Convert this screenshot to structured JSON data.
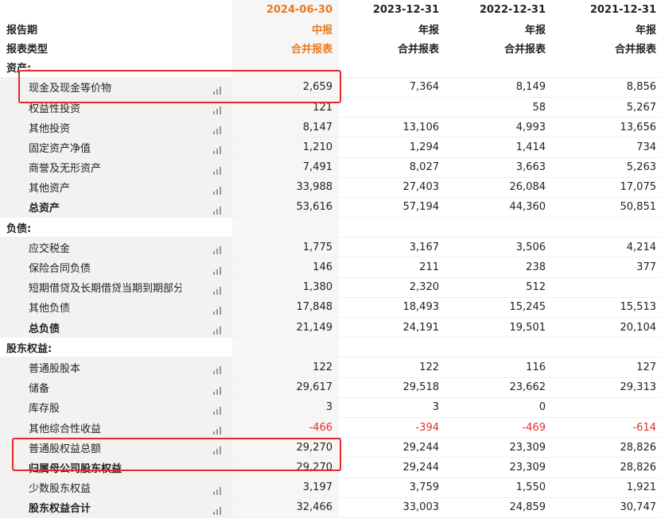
{
  "header": {
    "dates": [
      "2024-06-30",
      "2023-12-31",
      "2022-12-31",
      "2021-12-31"
    ],
    "period_label": "报告期",
    "periods": [
      "中报",
      "年报",
      "年报",
      "年报"
    ],
    "type_label": "报表类型",
    "types": [
      "合并报表",
      "合并报表",
      "合并报表",
      "合并报表"
    ]
  },
  "sections": {
    "assets": "资产:",
    "liabilities": "负债:",
    "equity": "股东权益:"
  },
  "rows": {
    "cash": {
      "label": "现金及现金等价物",
      "v": [
        "2,659",
        "7,364",
        "8,149",
        "8,856"
      ]
    },
    "equity_inv": {
      "label": "权益性投资",
      "v": [
        "121",
        "",
        "58",
        "5,267"
      ]
    },
    "other_inv": {
      "label": "其他投资",
      "v": [
        "8,147",
        "13,106",
        "4,993",
        "13,656"
      ]
    },
    "fixed": {
      "label": "固定资产净值",
      "v": [
        "1,210",
        "1,294",
        "1,414",
        "734"
      ]
    },
    "goodwill": {
      "label": "商誉及无形资产",
      "v": [
        "7,491",
        "8,027",
        "3,663",
        "5,263"
      ]
    },
    "other_assets": {
      "label": "其他资产",
      "v": [
        "33,988",
        "27,403",
        "26,084",
        "17,075"
      ]
    },
    "total_assets": {
      "label": "总资产",
      "v": [
        "53,616",
        "57,194",
        "44,360",
        "50,851"
      ]
    },
    "tax": {
      "label": "应交税金",
      "v": [
        "1,775",
        "3,167",
        "3,506",
        "4,214"
      ]
    },
    "insurance": {
      "label": "保险合同负债",
      "v": [
        "146",
        "211",
        "238",
        "377"
      ]
    },
    "short_debt": {
      "label": "短期借贷及长期借贷当期到期部分",
      "v": [
        "1,380",
        "2,320",
        "512",
        ""
      ]
    },
    "other_liab": {
      "label": "其他负债",
      "v": [
        "17,848",
        "18,493",
        "15,245",
        "15,513"
      ]
    },
    "total_liab": {
      "label": "总负债",
      "v": [
        "21,149",
        "24,191",
        "19,501",
        "20,104"
      ]
    },
    "common_stock": {
      "label": "普通股股本",
      "v": [
        "122",
        "122",
        "116",
        "127"
      ]
    },
    "reserve": {
      "label": "储备",
      "v": [
        "29,617",
        "29,518",
        "23,662",
        "29,313"
      ]
    },
    "treasury": {
      "label": "库存股",
      "v": [
        "3",
        "3",
        "0",
        ""
      ]
    },
    "oci": {
      "label": "其他综合性收益",
      "v": [
        "-466",
        "-394",
        "-469",
        "-614"
      ]
    },
    "common_equity": {
      "label": "普通股权益总额",
      "v": [
        "29,270",
        "29,244",
        "23,309",
        "28,826"
      ]
    },
    "parent_equity": {
      "label": "归属母公司股东权益",
      "v": [
        "29,270",
        "29,244",
        "23,309",
        "28,826"
      ]
    },
    "minority": {
      "label": "少数股东权益",
      "v": [
        "3,197",
        "3,759",
        "1,550",
        "1,921"
      ]
    },
    "total_equity": {
      "label": "股东权益合计",
      "v": [
        "32,466",
        "33,003",
        "24,859",
        "30,747"
      ]
    }
  },
  "colors": {
    "accent": "#e87a1d",
    "negative": "#e0302d",
    "highlight": "#e8262b"
  },
  "icon": "bar-chart-icon"
}
